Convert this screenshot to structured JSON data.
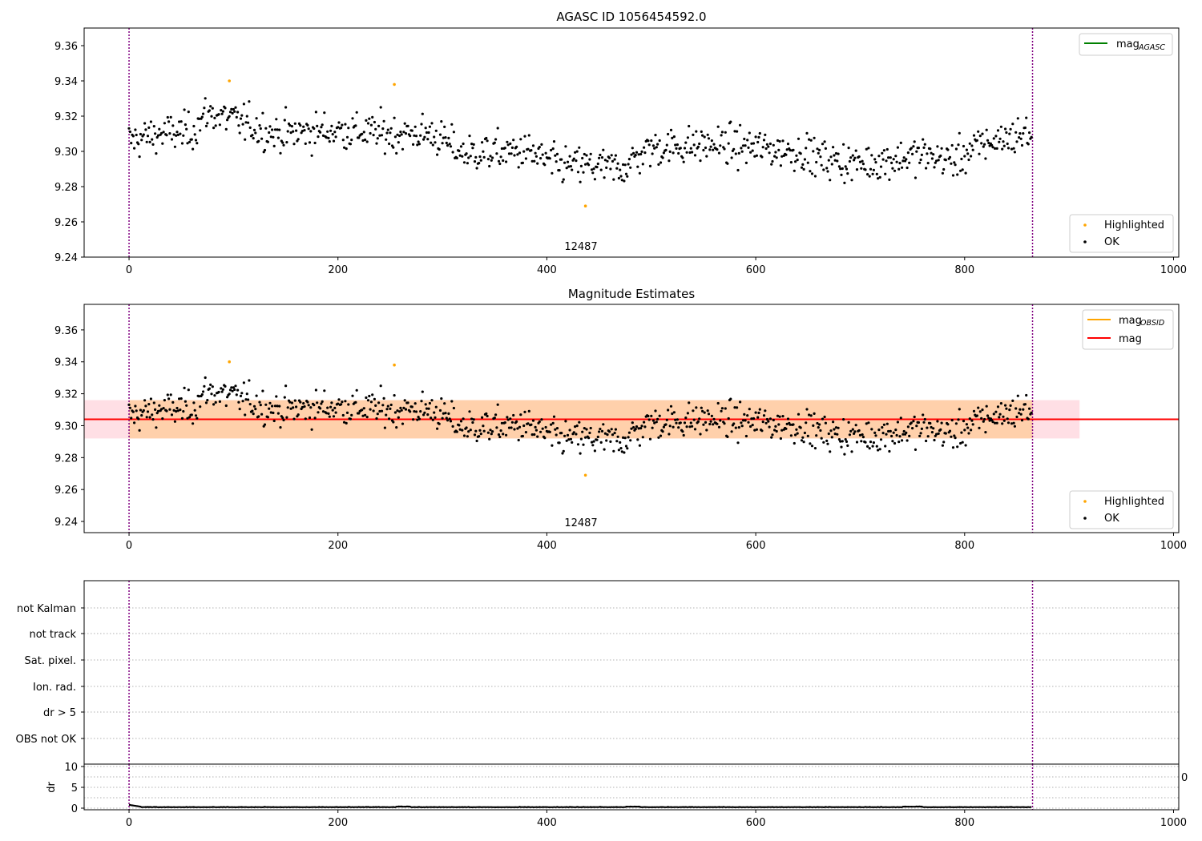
{
  "figure": {
    "obsid_label": "12487",
    "x_ticks": [
      "0",
      "200",
      "400",
      "600",
      "800",
      "1000"
    ],
    "x_ticks_clipped": "0"
  },
  "chart_data": [
    {
      "type": "scatter",
      "title": "AGASC ID 1056454592.0",
      "xlabel": "",
      "ylabel": "",
      "xlim": [
        -43,
        1005
      ],
      "ylim": [
        9.24,
        9.37
      ],
      "y_ticks": [
        "9.24",
        "9.26",
        "9.28",
        "9.30",
        "9.32",
        "9.34",
        "9.36"
      ],
      "obsid_boundaries": [
        0,
        865
      ],
      "legend_lines": [
        {
          "name": "mag",
          "subscript": "AGASC",
          "color": "#008000"
        }
      ],
      "legend_points": [
        {
          "name": "Highlighted",
          "color": "#ffa500"
        },
        {
          "name": "OK",
          "color": "#000000"
        }
      ],
      "series": [
        {
          "name": "OK",
          "color": "#000000",
          "n_points": 865,
          "x_range": [
            0,
            865
          ],
          "y_approx_range": [
            9.27,
            9.337
          ]
        },
        {
          "name": "Highlighted",
          "color": "#ffa500",
          "points": [
            [
              96,
              9.34
            ],
            [
              254,
              9.338
            ],
            [
              437,
              9.269
            ]
          ]
        }
      ]
    },
    {
      "type": "scatter",
      "title": "Magnitude Estimates",
      "xlabel": "",
      "ylabel": "",
      "xlim": [
        -43,
        1005
      ],
      "ylim": [
        9.233,
        9.376
      ],
      "y_ticks": [
        "9.24",
        "9.26",
        "9.28",
        "9.30",
        "9.32",
        "9.34",
        "9.36"
      ],
      "obsid_boundaries": [
        0,
        865
      ],
      "mag_line": 9.304,
      "mag_band": [
        9.292,
        9.316
      ],
      "mag_band_x": [
        -43,
        910
      ],
      "legend_lines": [
        {
          "name": "mag",
          "subscript": "OBSID",
          "color": "#ffa500"
        },
        {
          "name": "mag",
          "subscript": "",
          "color": "#ff0000"
        }
      ],
      "legend_points": [
        {
          "name": "Highlighted",
          "color": "#ffa500"
        },
        {
          "name": "OK",
          "color": "#000000"
        }
      ],
      "series": [
        {
          "name": "OK",
          "color": "#000000",
          "n_points": 865,
          "x_range": [
            0,
            865
          ],
          "y_approx_range": [
            9.27,
            9.337
          ]
        },
        {
          "name": "Highlighted",
          "color": "#ffa500",
          "points": [
            [
              96,
              9.34
            ],
            [
              254,
              9.338
            ],
            [
              437,
              9.269
            ]
          ]
        }
      ]
    },
    {
      "type": "scatter",
      "title": "",
      "categories": [
        "not Kalman",
        "not track",
        "Sat. pixel.",
        "Ion. rad.",
        "dr > 5",
        "OBS not OK"
      ],
      "flags": [],
      "obsid_boundaries": [
        0,
        865
      ],
      "grid": true
    },
    {
      "type": "line",
      "title": "",
      "ylabel": "dr",
      "ylim": [
        0,
        10
      ],
      "y_ticks": [
        "0",
        "5",
        "10"
      ],
      "xlim": [
        -43,
        1005
      ],
      "obsid_boundaries": [
        0,
        865
      ],
      "series": [
        {
          "name": "dr",
          "color": "#000000",
          "n_points": 865,
          "x_range": [
            0,
            865
          ],
          "y_approx_range": [
            0.0,
            0.8
          ]
        }
      ]
    }
  ]
}
